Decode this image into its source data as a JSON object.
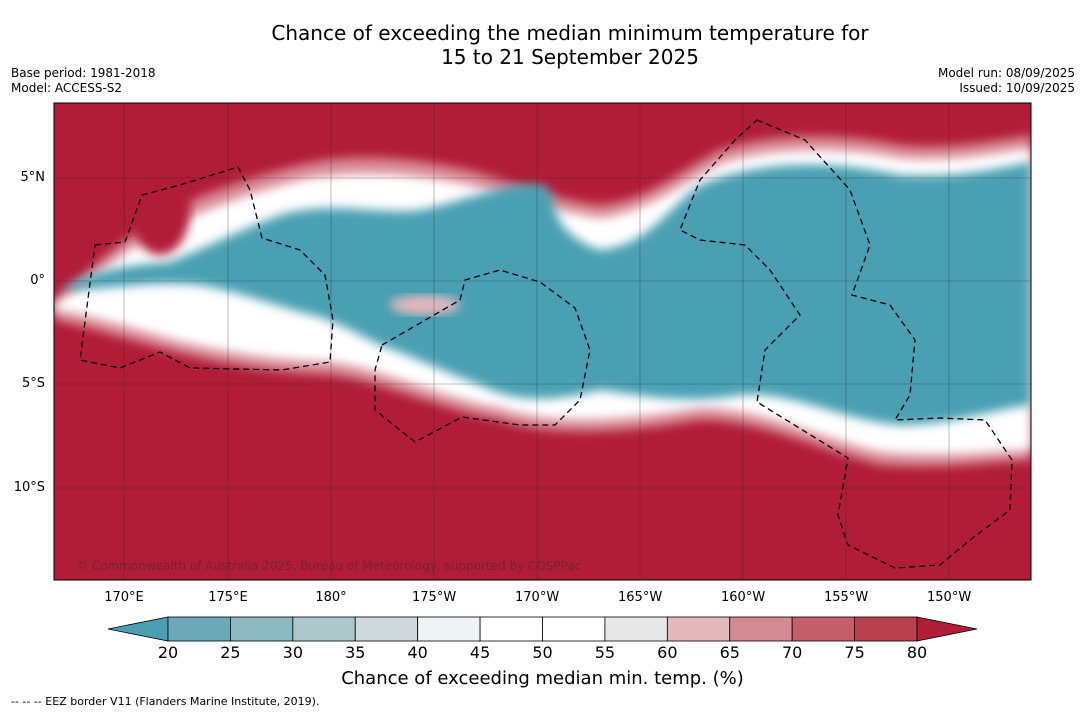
{
  "title": {
    "line1": "Chance of exceeding the median minimum temperature for",
    "line2": "15 to 21 September 2025"
  },
  "meta_left": {
    "base_period": "Base period: 1981-2018",
    "model": "Model: ACCESS-S2"
  },
  "meta_right": {
    "model_run": "Model run: 08/09/2025",
    "issued": "Issued: 10/09/2025"
  },
  "map": {
    "lat_labels": [
      "5°N",
      "0°",
      "5°S",
      "10°S"
    ],
    "lon_labels": [
      "170°E",
      "175°E",
      "180°",
      "175°W",
      "170°W",
      "165°W",
      "160°W",
      "155°W",
      "150°W"
    ],
    "copyright": "© Commonwealth of Australia 2025, Bureau of Meteorology, supported by COSPPac"
  },
  "colorbar": {
    "tick_labels": [
      "20",
      "25",
      "30",
      "35",
      "40",
      "45",
      "50",
      "55",
      "60",
      "65",
      "70",
      "75",
      "80"
    ],
    "title": "Chance of exceeding median min. temp. (%)",
    "colors": [
      "#4aa0b2",
      "#6ba9b8",
      "#8cb9c2",
      "#adc7cb",
      "#d0d9db",
      "#eef3f5",
      "#ffffff",
      "#ffffff",
      "#e8e8e8",
      "#e2b8bd",
      "#d38a93",
      "#c55f6c",
      "#b9414f",
      "#b11d38"
    ]
  },
  "footnote": "--  --  -- EEZ border V11 (Flanders Marine Institute, 2019)."
}
